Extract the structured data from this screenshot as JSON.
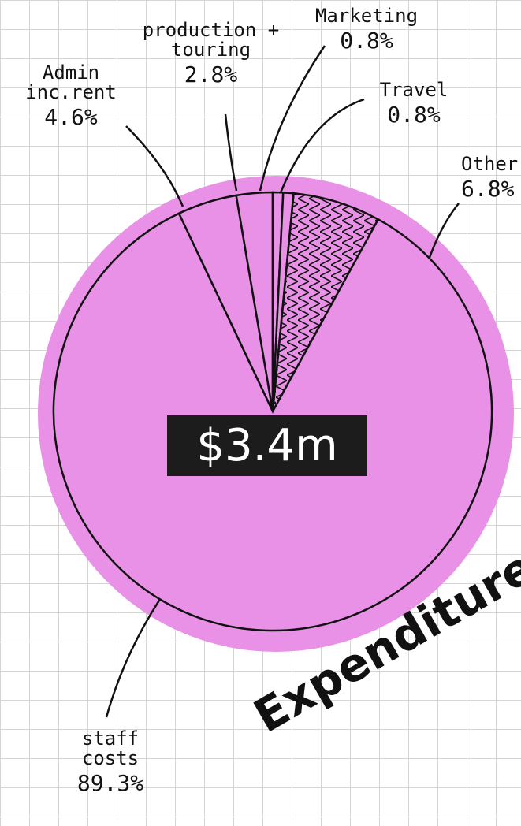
{
  "chart_data": {
    "type": "pie",
    "title": "Expenditure",
    "center_label": "$3.4m",
    "categories": [
      "Admin inc.rent",
      "production + touring",
      "Marketing",
      "Travel",
      "Other",
      "staff costs"
    ],
    "values": [
      4.6,
      2.8,
      0.8,
      0.8,
      6.8,
      89.3
    ],
    "value_labels": [
      "4.6%",
      "2.8%",
      "0.8%",
      "0.8%",
      "6.8%",
      "89.3%"
    ],
    "color": "#e891e6"
  }
}
